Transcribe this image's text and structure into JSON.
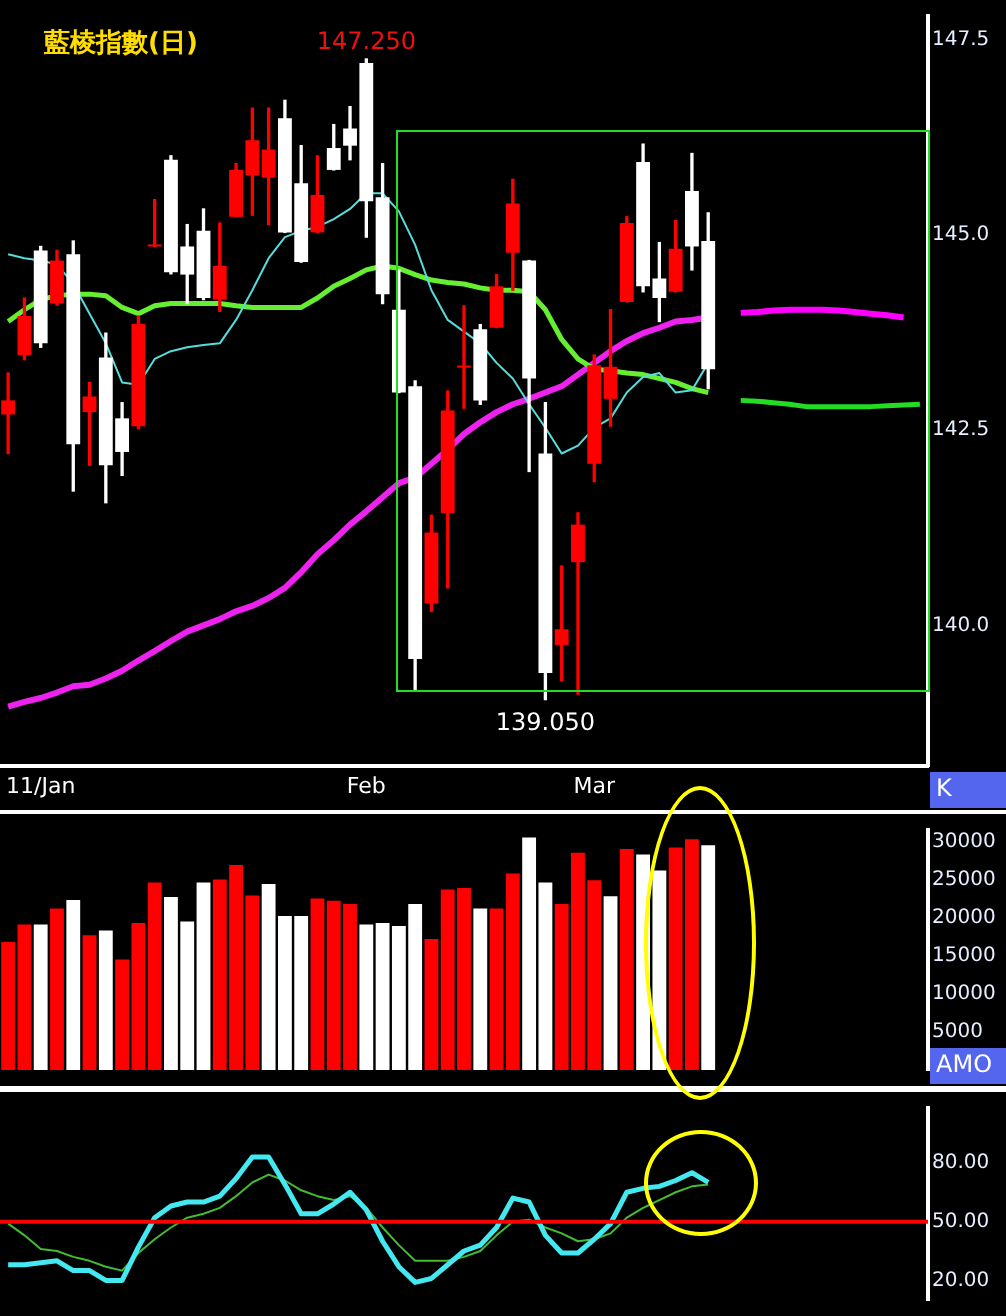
{
  "chart_data": [
    {
      "type": "candlestick",
      "title": "藍棱指數(日)",
      "categories": [
        null,
        null,
        "11/Jan",
        null,
        null,
        null,
        null,
        null,
        null,
        null,
        null,
        null,
        null,
        null,
        null,
        null,
        null,
        null,
        null,
        null,
        null,
        null,
        "Feb",
        null,
        null,
        null,
        null,
        null,
        null,
        null,
        null,
        null,
        null,
        null,
        null,
        null,
        "Mar",
        null,
        null,
        null,
        null,
        null,
        null,
        null,
        null,
        null,
        null,
        null,
        null,
        null,
        null,
        null,
        null,
        null,
        null,
        null,
        null
      ],
      "ohlc": [
        [
          142.7,
          143.23,
          142.2,
          142.88
        ],
        [
          143.46,
          144.19,
          143.4,
          143.96
        ],
        [
          144.8,
          144.85,
          143.56,
          143.61
        ],
        [
          144.12,
          144.8,
          144.1,
          144.67
        ],
        [
          144.75,
          144.92,
          141.72,
          142.32
        ],
        [
          142.73,
          143.11,
          142.05,
          142.93
        ],
        [
          143.43,
          143.74,
          141.57,
          142.05
        ],
        [
          142.65,
          142.85,
          141.92,
          142.22
        ],
        [
          142.55,
          143.96,
          142.52,
          143.86
        ],
        [
          144.85,
          145.45,
          144.85,
          144.87
        ],
        [
          145.96,
          146.01,
          144.5,
          144.52
        ],
        [
          144.85,
          145.13,
          144.12,
          144.49
        ],
        [
          145.05,
          145.33,
          144.17,
          144.19
        ],
        [
          144.17,
          145.15,
          144.02,
          144.6
        ],
        [
          145.23,
          145.91,
          145.23,
          145.83
        ],
        [
          145.76,
          146.62,
          145.25,
          146.21
        ],
        [
          145.73,
          146.62,
          145.13,
          146.09
        ],
        [
          146.49,
          146.72,
          145.03,
          145.03
        ],
        [
          145.66,
          146.14,
          144.65,
          144.65
        ],
        [
          145.03,
          146.01,
          145.03,
          145.51
        ],
        [
          146.11,
          146.41,
          145.83,
          145.83
        ],
        [
          146.36,
          146.64,
          145.96,
          146.14
        ],
        [
          147.2,
          147.25,
          144.97,
          145.43
        ],
        [
          145.48,
          145.91,
          144.12,
          144.24
        ],
        [
          144.04,
          144.55,
          142.98,
          142.98
        ],
        [
          143.06,
          143.13,
          139.17,
          139.57
        ],
        [
          140.28,
          141.41,
          140.18,
          141.19
        ],
        [
          141.44,
          143.0,
          140.48,
          142.75
        ],
        [
          143.3,
          144.09,
          142.78,
          143.32
        ],
        [
          143.79,
          143.85,
          142.83,
          142.88
        ],
        [
          143.81,
          144.49,
          143.81,
          144.34
        ],
        [
          144.77,
          145.71,
          144.29,
          145.4
        ],
        [
          144.67,
          144.67,
          141.97,
          143.16
        ],
        [
          142.2,
          142.85,
          139.05,
          139.39
        ],
        [
          139.75,
          140.76,
          139.29,
          139.95
        ],
        [
          140.81,
          141.44,
          139.12,
          141.29
        ],
        [
          142.07,
          143.46,
          141.84,
          143.33
        ],
        [
          142.9,
          144.04,
          142.55,
          143.31
        ],
        [
          144.14,
          145.23,
          144.14,
          145.15
        ],
        [
          145.93,
          146.16,
          144.27,
          144.34
        ],
        [
          144.44,
          144.9,
          143.89,
          144.19
        ],
        [
          144.27,
          145.18,
          144.27,
          144.82
        ],
        [
          145.56,
          146.04,
          144.55,
          144.85
        ],
        [
          144.92,
          145.28,
          143.03,
          143.28
        ],
        null,
        null,
        null,
        null,
        null,
        null,
        null,
        null,
        null,
        null,
        null,
        null,
        null
      ],
      "colors": [
        "#ff0000",
        "#ff0000",
        "#ffffff",
        "#ff0000",
        "#ffffff",
        "#ff0000",
        "#ffffff",
        "#ffffff",
        "#ff0000",
        "#ff0000",
        "#ffffff",
        "#ffffff",
        "#ffffff",
        "#ff0000",
        "#ff0000",
        "#ff0000",
        "#ff0000",
        "#ffffff",
        "#ffffff",
        "#ff0000",
        "#ffffff",
        "#ffffff",
        "#ffffff",
        "#ffffff",
        "#ffffff",
        "#ffffff",
        "#ff0000",
        "#ff0000",
        "#ff0000",
        "#ffffff",
        "#ff0000",
        "#ff0000",
        "#ffffff",
        "#ffffff",
        "#ff0000",
        "#ff0000",
        "#ff0000",
        "#ff0000",
        "#ff0000",
        "#ffffff",
        "#ffffff",
        "#ff0000",
        "#ffffff",
        "#ffffff",
        null,
        null,
        null,
        null,
        null,
        null,
        null,
        null,
        null,
        null,
        null,
        null,
        null
      ],
      "series": [
        {
          "type": "line",
          "color": "#55dddd",
          "values": [
            144.75,
            144.7,
            144.67,
            144.62,
            144.37,
            143.99,
            143.61,
            143.11,
            143.08,
            143.41,
            143.51,
            143.56,
            143.59,
            143.61,
            143.91,
            144.29,
            144.7,
            144.97,
            145.05,
            145.1,
            145.2,
            145.33,
            145.53,
            145.53,
            145.3,
            144.87,
            144.29,
            143.91,
            143.76,
            143.61,
            143.36,
            143.16,
            142.83,
            142.53,
            142.2,
            142.3,
            142.53,
            142.65,
            142.98,
            143.18,
            143.23,
            142.98,
            143.01,
            143.36,
            null,
            null,
            null,
            null,
            null,
            null,
            null,
            null,
            null,
            null,
            null,
            null,
            null
          ]
        },
        {
          "type": "line",
          "color": "#66ee33",
          "values": [
            143.89,
            144.04,
            144.17,
            144.22,
            144.24,
            144.24,
            144.22,
            144.07,
            143.99,
            144.09,
            144.12,
            144.12,
            144.12,
            144.12,
            144.09,
            144.07,
            144.07,
            144.07,
            144.07,
            144.19,
            144.34,
            144.44,
            144.55,
            144.6,
            144.57,
            144.49,
            144.42,
            144.39,
            144.37,
            144.32,
            144.29,
            144.29,
            144.27,
            144.04,
            143.66,
            143.41,
            143.28,
            143.26,
            143.23,
            143.21,
            143.16,
            143.11,
            143.03,
            142.98,
            null,
            null,
            null,
            null,
            null,
            null,
            null,
            null,
            null,
            null,
            null,
            null,
            null
          ]
        },
        {
          "type": "line",
          "color": "#ee22ee",
          "values": [
            138.96,
            139.02,
            139.07,
            139.14,
            139.22,
            139.24,
            139.32,
            139.42,
            139.55,
            139.67,
            139.8,
            139.92,
            140.0,
            140.08,
            140.18,
            140.25,
            140.35,
            140.48,
            140.68,
            140.91,
            141.09,
            141.29,
            141.46,
            141.64,
            141.82,
            141.89,
            142.07,
            142.25,
            142.45,
            142.6,
            142.73,
            142.83,
            142.9,
            142.98,
            143.06,
            143.21,
            143.36,
            143.51,
            143.64,
            143.74,
            143.81,
            143.89,
            143.91,
            143.94,
            null,
            null,
            null,
            null,
            null,
            null,
            null,
            null,
            null,
            null,
            null,
            null,
            null
          ]
        },
        {
          "type": "line",
          "color": "#22dd22",
          "values": [
            null,
            null,
            null,
            null,
            null,
            null,
            null,
            null,
            null,
            null,
            null,
            null,
            null,
            null,
            null,
            null,
            null,
            null,
            null,
            null,
            null,
            null,
            null,
            null,
            null,
            null,
            null,
            null,
            null,
            null,
            null,
            null,
            null,
            null,
            null,
            null,
            null,
            null,
            null,
            null,
            null,
            null,
            null,
            null,
            null,
            142.88,
            142.87,
            142.85,
            142.83,
            142.8,
            142.8,
            142.8,
            142.8,
            142.8,
            142.81,
            142.82,
            142.83
          ]
        },
        {
          "type": "line",
          "color": "#ff00ff",
          "values": [
            null,
            null,
            null,
            null,
            null,
            null,
            null,
            null,
            null,
            null,
            null,
            null,
            null,
            null,
            null,
            null,
            null,
            null,
            null,
            null,
            null,
            null,
            null,
            null,
            null,
            null,
            null,
            null,
            null,
            null,
            null,
            null,
            null,
            null,
            null,
            null,
            null,
            null,
            null,
            null,
            null,
            null,
            null,
            null,
            null,
            144.0,
            144.01,
            144.03,
            144.04,
            144.04,
            144.04,
            144.03,
            144.01,
            143.99,
            143.97,
            143.94,
            null
          ]
        }
      ],
      "marker": "none",
      "ylim": [
        138.2,
        147.8
      ],
      "yticks": [
        {
          "value": 147.5,
          "label": "147.5"
        },
        {
          "value": 145.0,
          "label": "145.0"
        },
        {
          "value": 142.5,
          "label": "142.5"
        },
        {
          "value": 140.0,
          "label": "140.0"
        }
      ],
      "annotations": [
        {
          "text": "147.250",
          "y": 147.25
        },
        {
          "text": "139.050",
          "y": 139.05
        },
        "K"
      ]
    },
    {
      "type": "bar",
      "categories": [
        null,
        null,
        null,
        null,
        null,
        null,
        null,
        null,
        null,
        null,
        null,
        null,
        null,
        null,
        null,
        null,
        null,
        null,
        null,
        null,
        null,
        null,
        null,
        null,
        null,
        null,
        null,
        null,
        null,
        null,
        null,
        null,
        null,
        null,
        null,
        null,
        null,
        null,
        null,
        null,
        null,
        null,
        null,
        null,
        null,
        null,
        null,
        null,
        null,
        null,
        null,
        null,
        null,
        null,
        null,
        null,
        null
      ],
      "values": [
        16800,
        19100,
        19100,
        21200,
        22300,
        17700,
        18300,
        14500,
        19300,
        24600,
        22700,
        19500,
        24600,
        25000,
        26900,
        22900,
        24400,
        20200,
        20200,
        22500,
        22200,
        21800,
        19100,
        19300,
        18900,
        21800,
        17200,
        23700,
        23900,
        21200,
        21200,
        25800,
        30500,
        24600,
        21800,
        28500,
        24900,
        22800,
        29000,
        28300,
        26200,
        29200,
        30300,
        29500,
        null,
        null,
        null,
        null,
        null,
        null,
        null,
        null,
        null,
        null,
        null,
        null,
        null
      ],
      "colors": [
        "#ff0000",
        "#ff0000",
        "#ffffff",
        "#ff0000",
        "#ffffff",
        "#ff0000",
        "#ffffff",
        "#ff0000",
        "#ff0000",
        "#ff0000",
        "#ffffff",
        "#ffffff",
        "#ffffff",
        "#ff0000",
        "#ff0000",
        "#ff0000",
        "#ffffff",
        "#ffffff",
        "#ffffff",
        "#ff0000",
        "#ff0000",
        "#ff0000",
        "#ffffff",
        "#ffffff",
        "#ffffff",
        "#ffffff",
        "#ff0000",
        "#ff0000",
        "#ff0000",
        "#ffffff",
        "#ff0000",
        "#ff0000",
        "#ffffff",
        "#ffffff",
        "#ff0000",
        "#ff0000",
        "#ff0000",
        "#ffffff",
        "#ff0000",
        "#ffffff",
        "#ffffff",
        "#ff0000",
        "#ff0000",
        "#ffffff",
        null,
        null,
        null,
        null,
        null,
        null,
        null,
        null,
        null,
        null,
        null,
        null,
        null
      ],
      "ylim": [
        0,
        31500
      ],
      "yticks": [
        5000,
        10000,
        15000,
        20000,
        25000,
        30000
      ],
      "tick_labels": "y",
      "annotations": [
        "AMO"
      ]
    },
    {
      "type": "line",
      "categories": [
        null,
        null,
        null,
        null,
        null,
        null,
        null,
        null,
        null,
        null,
        null,
        null,
        null,
        null,
        null,
        null,
        null,
        null,
        null,
        null,
        null,
        null,
        null,
        null,
        null,
        null,
        null,
        null,
        null,
        null,
        null,
        null,
        null,
        null,
        null,
        null,
        null,
        null,
        null,
        null,
        null,
        null,
        null,
        null,
        null,
        null,
        null,
        null,
        null,
        null,
        null,
        null,
        null,
        null,
        null,
        null,
        null
      ],
      "series": [
        {
          "color": "#44e8f0",
          "values": [
            28,
            28,
            29,
            30,
            25,
            25,
            20,
            20,
            37,
            52,
            58,
            60,
            60,
            63,
            72,
            83,
            83,
            69,
            54,
            54,
            59,
            65,
            56,
            40,
            27,
            19,
            21,
            28,
            35,
            38,
            47,
            62,
            60,
            43,
            34,
            34,
            41,
            49,
            65,
            67,
            68,
            71,
            75,
            70,
            null,
            null,
            null,
            null,
            null,
            null,
            null,
            null,
            null,
            null,
            null,
            null,
            null
          ]
        },
        {
          "color": "#44bb33",
          "values": [
            49,
            43,
            36,
            35,
            32,
            30,
            27,
            25,
            34,
            41,
            47,
            52,
            54,
            57,
            63,
            70,
            74,
            71,
            66,
            63,
            61,
            63,
            57,
            47,
            38,
            30,
            30,
            30,
            32,
            35,
            43,
            50,
            51,
            47,
            44,
            40,
            41,
            44,
            52,
            57,
            61,
            65,
            68,
            69,
            null,
            null,
            null,
            null,
            null,
            null,
            null,
            null,
            null,
            null,
            null,
            null,
            null
          ]
        }
      ],
      "marker": "none",
      "ylim": [
        10,
        108
      ],
      "yticks": [
        {
          "value": 20,
          "label": "20.00"
        },
        {
          "value": 50,
          "label": "50.00"
        },
        {
          "value": 80,
          "label": "80.00"
        }
      ],
      "ref_lines": [
        {
          "axis": "y",
          "value": 50,
          "color": "#ff0000"
        }
      ],
      "tick_labels": "y"
    }
  ]
}
